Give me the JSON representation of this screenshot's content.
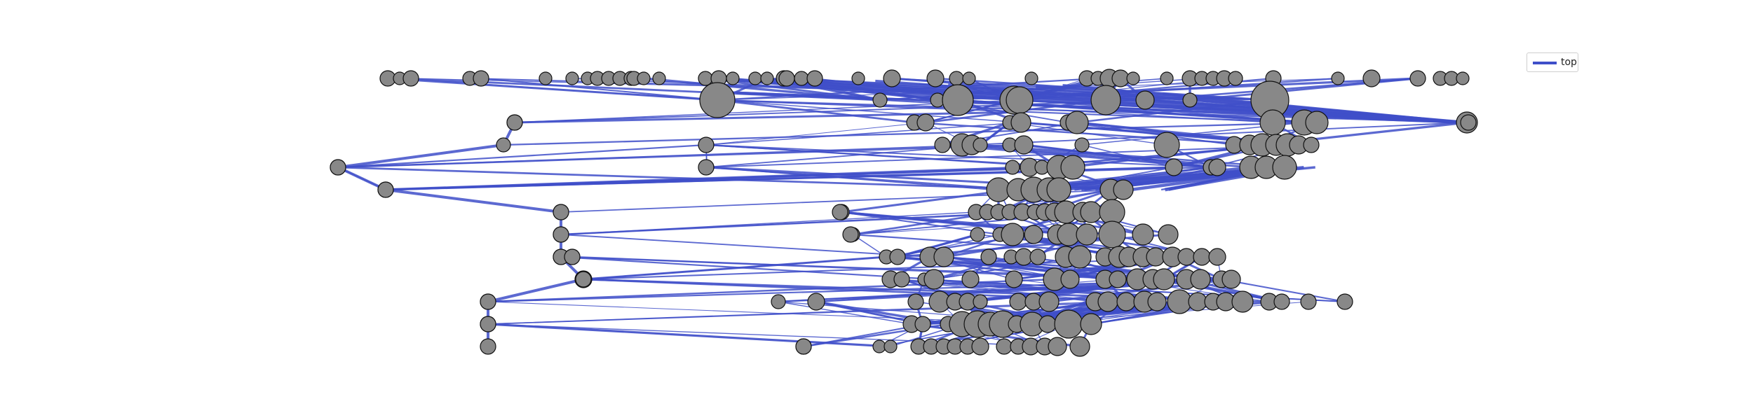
{
  "legend": {
    "label": "top",
    "color": "#3f4fc9"
  },
  "style": {
    "edge_color": "#3f4fc9",
    "node_fill": "#888888",
    "node_stroke": "#111111"
  },
  "diagram": {
    "type": "layered network graph",
    "rows": 13,
    "nodes_per_row": [
      41,
      14,
      13,
      22,
      15,
      10,
      14,
      8,
      27,
      27,
      26,
      24,
      19
    ]
  }
}
